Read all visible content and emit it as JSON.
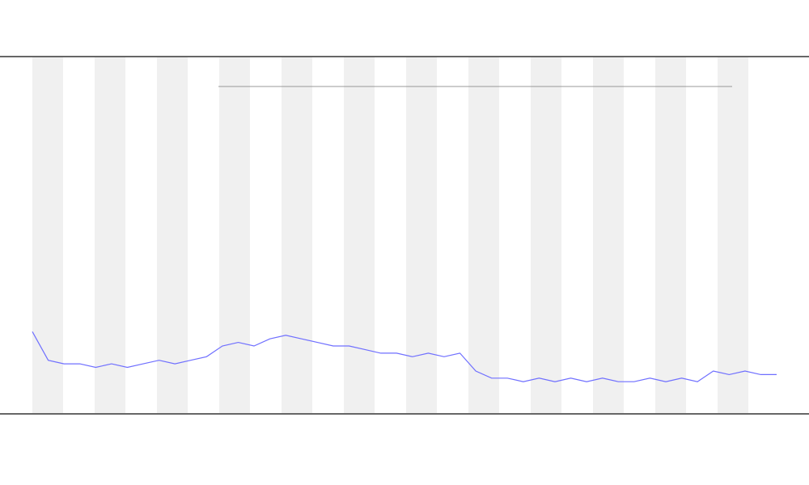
{
  "chart_data": {
    "type": "line",
    "categories": [
      null,
      null,
      null,
      null,
      null,
      null,
      null,
      null,
      null,
      null,
      null,
      null,
      null,
      null,
      null,
      null,
      null,
      null,
      null,
      null,
      null,
      null,
      null,
      null,
      null,
      null,
      null,
      null,
      null,
      null,
      null,
      null,
      null,
      null,
      null,
      null,
      null,
      null,
      null,
      null,
      null,
      null,
      null,
      null,
      null,
      null,
      null,
      null
    ],
    "series": [
      {
        "color": "#6f6fff",
        "values": [
          23,
          15,
          14,
          14,
          13,
          14,
          13,
          14,
          15,
          14,
          15,
          16,
          19,
          20,
          19,
          21,
          22,
          21,
          20,
          19,
          19,
          18,
          17,
          17,
          16,
          17,
          16,
          17,
          12,
          10,
          10,
          9,
          10,
          9,
          10,
          9,
          10,
          9,
          9,
          10,
          9,
          10,
          9,
          12,
          11,
          12,
          11,
          11
        ]
      }
    ],
    "ylim": [
      0,
      100
    ]
  }
}
